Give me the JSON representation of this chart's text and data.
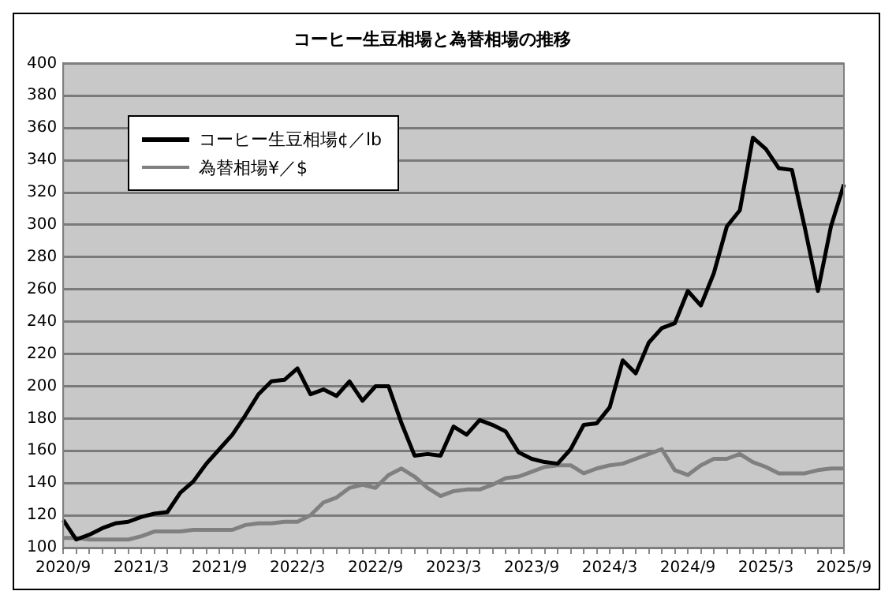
{
  "chart_data": {
    "type": "line",
    "title": "コーヒー生豆相場と為替相場の推移",
    "categories": [
      "2020/9",
      null,
      null,
      null,
      null,
      null,
      "2021/3",
      null,
      null,
      null,
      null,
      null,
      "2021/9",
      null,
      null,
      null,
      null,
      null,
      "2022/3",
      null,
      null,
      null,
      null,
      null,
      "2022/9",
      null,
      null,
      null,
      null,
      null,
      "2023/3",
      null,
      null,
      null,
      null,
      null,
      "2023/9",
      null,
      null,
      null,
      null,
      null,
      "2024/3",
      null,
      null,
      null,
      null,
      null,
      "2024/9",
      null,
      null,
      null,
      null,
      null,
      "2025/3",
      null,
      null,
      null,
      null,
      null,
      "2025/9"
    ],
    "series": [
      {
        "name": "コーヒー生豆相場¢／lb",
        "color": "#000000",
        "values": [
          117,
          105,
          108,
          112,
          115,
          116,
          119,
          121,
          122,
          134,
          141,
          152,
          161,
          170,
          182,
          195,
          203,
          204,
          211,
          195,
          198,
          194,
          203,
          191,
          200,
          200,
          177,
          157,
          158,
          157,
          175,
          170,
          179,
          176,
          172,
          159,
          155,
          153,
          152,
          161,
          176,
          177,
          187,
          216,
          208,
          227,
          236,
          239,
          259,
          250,
          270,
          299,
          309,
          354,
          347,
          335,
          334,
          298,
          259,
          299,
          325
        ]
      },
      {
        "name": "為替相場¥／$",
        "color": "#808080",
        "values": [
          106,
          106,
          105,
          105,
          105,
          105,
          107,
          110,
          110,
          110,
          111,
          111,
          111,
          111,
          114,
          115,
          115,
          116,
          116,
          120,
          128,
          131,
          137,
          139,
          137,
          145,
          149,
          144,
          137,
          132,
          135,
          136,
          136,
          139,
          143,
          144,
          147,
          150,
          151,
          151,
          146,
          149,
          151,
          152,
          155,
          158,
          161,
          148,
          145,
          151,
          155,
          155,
          158,
          153,
          150,
          146,
          146,
          146,
          148,
          149,
          149
        ]
      }
    ],
    "ylim": [
      100,
      400
    ],
    "yticks": [
      100,
      120,
      140,
      160,
      180,
      200,
      220,
      240,
      260,
      280,
      300,
      320,
      340,
      360,
      380,
      400
    ],
    "grid": "y",
    "legend": "top left",
    "marker": "none",
    "line_style": "solid"
  }
}
